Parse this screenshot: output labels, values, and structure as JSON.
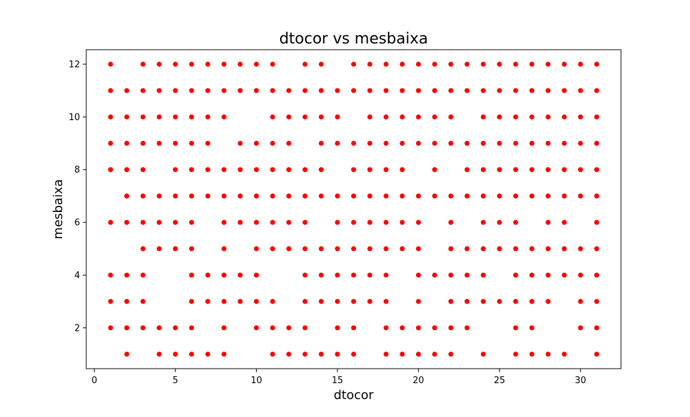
{
  "chart_data": {
    "type": "scatter",
    "title": "dtocor vs mesbaixa",
    "xlabel": "dtocor",
    "ylabel": "mesbaixa",
    "xlim": [
      -0.5,
      32.5
    ],
    "ylim": [
      0.45,
      12.55
    ],
    "xticks": [
      0,
      5,
      10,
      15,
      20,
      25,
      30
    ],
    "yticks": [
      2,
      4,
      6,
      8,
      10,
      12
    ],
    "grid": false,
    "legend": "none",
    "marker_color": "#ff0000",
    "series": [
      {
        "points_by_y": {
          "12": [
            1,
            3,
            4,
            5,
            6,
            7,
            8,
            9,
            10,
            11,
            13,
            14,
            16,
            17,
            18,
            19,
            20,
            21,
            22,
            23,
            24,
            25,
            26,
            27,
            28,
            29,
            30,
            31
          ],
          "11": [
            1,
            2,
            3,
            4,
            5,
            6,
            7,
            8,
            9,
            10,
            11,
            12,
            13,
            14,
            15,
            16,
            17,
            18,
            19,
            20,
            21,
            22,
            23,
            24,
            25,
            26,
            27,
            28,
            29,
            30,
            31
          ],
          "10": [
            1,
            2,
            3,
            4,
            5,
            6,
            7,
            8,
            11,
            12,
            13,
            14,
            15,
            17,
            18,
            19,
            20,
            21,
            22,
            24,
            25,
            26,
            27,
            28,
            29,
            30,
            31
          ],
          "9": [
            1,
            2,
            3,
            4,
            5,
            6,
            7,
            9,
            10,
            11,
            12,
            14,
            15,
            16,
            17,
            18,
            19,
            20,
            21,
            22,
            23,
            24,
            25,
            26,
            27,
            28,
            29,
            30,
            31
          ],
          "8": [
            1,
            2,
            3,
            5,
            6,
            7,
            8,
            9,
            10,
            11,
            12,
            13,
            14,
            16,
            17,
            18,
            19,
            21,
            23,
            24,
            25,
            26,
            27,
            28,
            29,
            30,
            31
          ],
          "7": [
            2,
            3,
            4,
            5,
            6,
            7,
            8,
            9,
            10,
            11,
            12,
            13,
            14,
            15,
            16,
            17,
            18,
            19,
            20,
            21,
            22,
            23,
            24,
            25,
            26,
            27,
            28,
            29,
            30,
            31
          ],
          "6": [
            1,
            2,
            3,
            4,
            5,
            6,
            8,
            9,
            10,
            11,
            12,
            13,
            15,
            16,
            17,
            18,
            19,
            20,
            22,
            24,
            25,
            26,
            28,
            29,
            31
          ],
          "5": [
            3,
            4,
            5,
            6,
            8,
            10,
            11,
            12,
            13,
            14,
            15,
            16,
            17,
            18,
            19,
            20,
            22,
            23,
            24,
            25,
            26,
            27,
            28,
            29,
            30,
            31
          ],
          "4": [
            1,
            2,
            3,
            6,
            7,
            8,
            9,
            10,
            13,
            14,
            15,
            16,
            17,
            18,
            20,
            21,
            22,
            23,
            24,
            26,
            27,
            28,
            29,
            30,
            31
          ],
          "3": [
            1,
            2,
            3,
            6,
            7,
            8,
            9,
            10,
            11,
            13,
            14,
            15,
            16,
            17,
            18,
            20,
            22,
            23,
            24,
            25,
            26,
            27,
            28,
            30,
            31
          ],
          "2": [
            1,
            2,
            3,
            4,
            5,
            6,
            8,
            10,
            11,
            12,
            13,
            15,
            16,
            18,
            19,
            20,
            21,
            22,
            23,
            26,
            27,
            30,
            31
          ],
          "1": [
            2,
            4,
            5,
            6,
            7,
            8,
            11,
            12,
            13,
            14,
            15,
            16,
            18,
            19,
            20,
            21,
            22,
            24,
            26,
            27,
            28,
            29,
            31
          ]
        }
      }
    ]
  }
}
